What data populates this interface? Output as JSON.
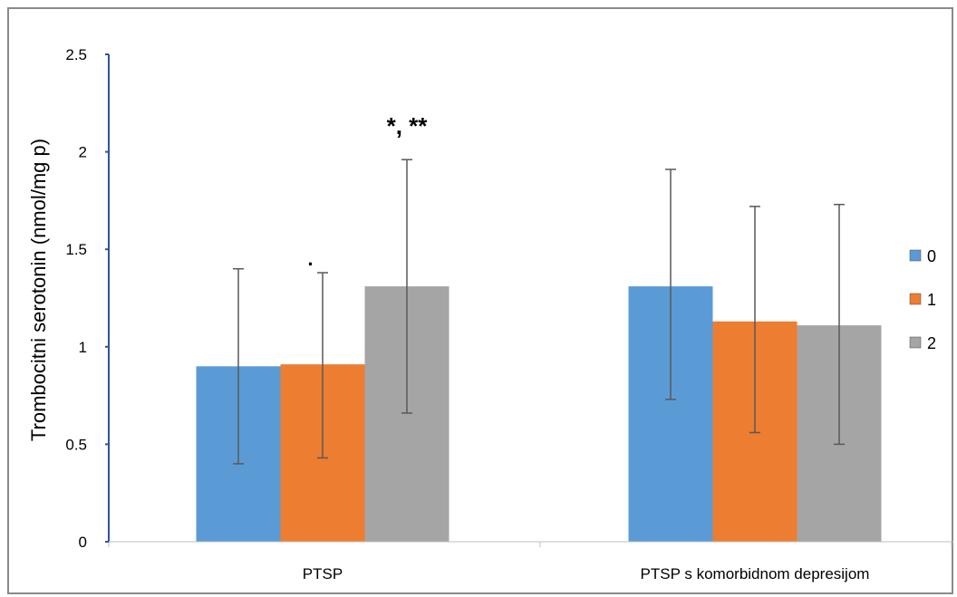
{
  "chart_data": {
    "type": "bar",
    "title": "",
    "xlabel": "",
    "ylabel": "Trombocitni serotonin (nmol/mg p)",
    "ylim": [
      0,
      2.5
    ],
    "yticks": [
      "0",
      "0.5",
      "1",
      "1.5",
      "2",
      "2.5"
    ],
    "ytick_values": [
      0,
      0.5,
      1,
      1.5,
      2,
      2.5
    ],
    "categories": [
      "PTSP",
      "PTSP s komorbidnom depresijom"
    ],
    "series": [
      {
        "name": "0",
        "color": "#5b9bd5",
        "values": [
          0.9,
          1.31
        ],
        "err_low": [
          0.4,
          0.73
        ],
        "err_high": [
          1.4,
          1.91
        ]
      },
      {
        "name": "1",
        "color": "#ed7d31",
        "values": [
          0.91,
          1.13
        ],
        "err_low": [
          0.43,
          0.56
        ],
        "err_high": [
          1.38,
          1.72
        ]
      },
      {
        "name": "2",
        "color": "#a5a5a5",
        "values": [
          1.31,
          1.11
        ],
        "err_low": [
          0.66,
          0.5
        ],
        "err_high": [
          1.96,
          1.73
        ]
      }
    ],
    "annotations": [
      {
        "text": "*, **",
        "category": 0,
        "series": 2
      },
      {
        "text": "·",
        "category": 0,
        "series": 1
      }
    ],
    "legend_position": "right",
    "grid": false,
    "axis_color": "#2f5597"
  }
}
